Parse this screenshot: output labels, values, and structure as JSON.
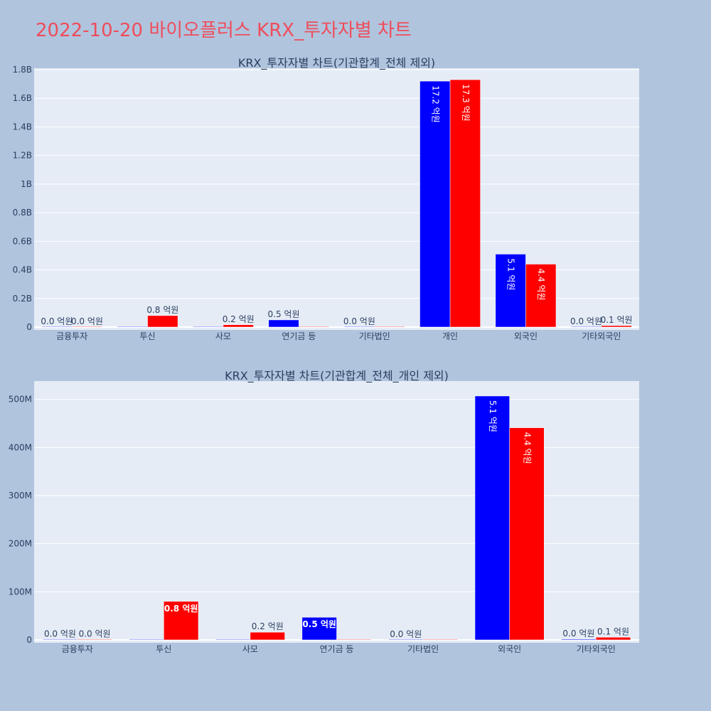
{
  "page": {
    "title": "2022-10-20 바이오플러스 KRX_투자자별 차트",
    "background": "#b0c4de",
    "title_color": "#ef4d5b"
  },
  "chart_data": [
    {
      "type": "bar",
      "title": "KRX_투자자별 차트(기관합계_전체 제외)",
      "categories": [
        "금융투자",
        "투신",
        "사모",
        "연기금 등",
        "기타법인",
        "개인",
        "외국인",
        "기타외국인"
      ],
      "series": [
        {
          "color": "#0000ff",
          "values": [
            0.0,
            0.0,
            0.0,
            50000000,
            0.0,
            1720000000,
            510000000,
            0.0
          ],
          "labels": [
            "0.0 억원",
            "",
            "",
            "0.5 억원",
            "0.0 억원",
            "17.2 억원",
            "5.1 억원",
            "0.0 억원"
          ]
        },
        {
          "color": "#ff0000",
          "values": [
            0.0,
            80000000,
            16000000,
            0.0,
            0.0,
            1730000000,
            440000000,
            10000000
          ],
          "labels": [
            "0.0 억원",
            "0.8 억원",
            "0.2 억원",
            "",
            "",
            "17.3 억원",
            "4.4 억원",
            "0.1 억원"
          ]
        }
      ],
      "yticks": [
        0,
        200000000,
        400000000,
        600000000,
        800000000,
        1000000000,
        1200000000,
        1400000000,
        1600000000,
        1800000000
      ],
      "ytick_labels": [
        "0",
        "0.2B",
        "0.4B",
        "0.6B",
        "0.8B",
        "1B",
        "1.2B",
        "1.4B",
        "1.6B",
        "1.8B"
      ],
      "ylim": [
        0,
        1810000000
      ],
      "grid": true,
      "plot_background": "#e5ecf6"
    },
    {
      "type": "bar",
      "title": "KRX_투자자별 차트(기관합계_전체_개인 제외)",
      "categories": [
        "금융투자",
        "투신",
        "사모",
        "연기금 등",
        "기타법인",
        "외국인",
        "기타외국인"
      ],
      "series": [
        {
          "color": "#0000ff",
          "values": [
            800000,
            0.0,
            0.0,
            47000000,
            0.0,
            507000000,
            1500000
          ],
          "labels": [
            "0.0 억원",
            "",
            "",
            "0.5 억원",
            "0.0 억원",
            "5.1 억원",
            "0.0 억원"
          ]
        },
        {
          "color": "#ff0000",
          "values": [
            1000000,
            80000000,
            16000000,
            0.0,
            0.0,
            441000000,
            5500000
          ],
          "labels": [
            "0.0 억원",
            "0.8 억원",
            "0.2 억원",
            "",
            "",
            "4.4 억원",
            "0.1 억원"
          ]
        }
      ],
      "yticks": [
        0,
        100000000,
        200000000,
        300000000,
        400000000,
        500000000
      ],
      "ytick_labels": [
        "0",
        "100M",
        "200M",
        "300M",
        "400M",
        "500M"
      ],
      "ylim": [
        0,
        538000000
      ],
      "grid": true,
      "plot_background": "#e5ecf6"
    }
  ]
}
